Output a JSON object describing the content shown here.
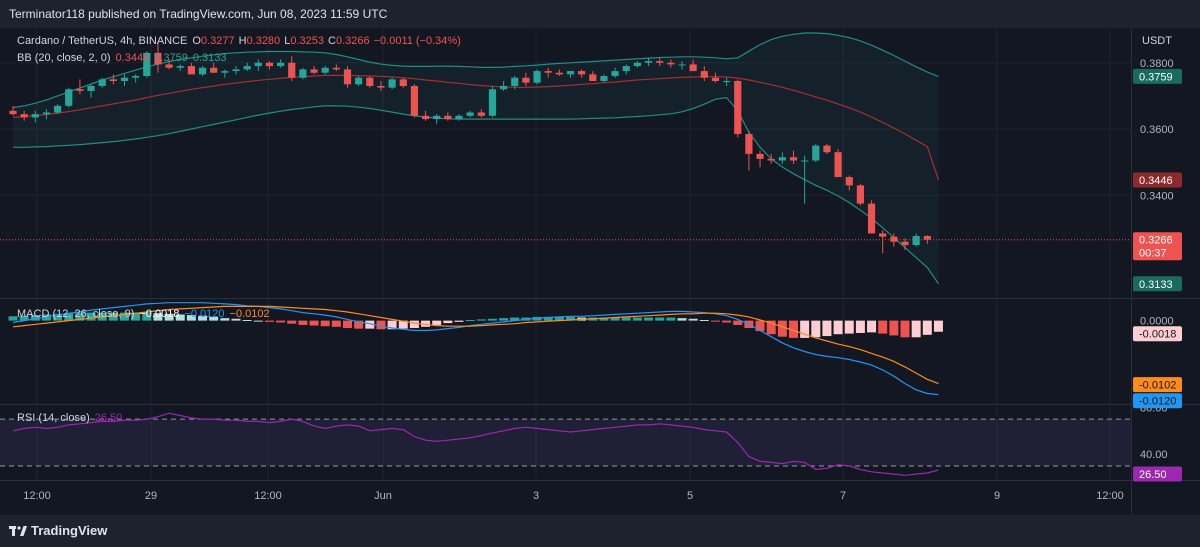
{
  "header": {
    "publisher_line": "Terminator118 published on TradingView.com, Jun 08, 2023 11:59 UTC"
  },
  "footer": {
    "brand": "TradingView"
  },
  "colors": {
    "bull": "#26a69a",
    "bear": "#ef5350",
    "bb_basis": "#a52f2f",
    "bb_band": "#1f8f7e",
    "macd_line": "#2196f3",
    "signal_line": "#ff8c1a",
    "rsi_line": "#9c27b0",
    "hist_pos_strong": "#26a69a",
    "hist_pos_weak": "#b2dfdb",
    "hist_neg_strong": "#ef5350",
    "hist_neg_weak": "#ffcdd2"
  },
  "chart_data": [
    {
      "type": "candlestick",
      "symbol_line": "Cardano / TetherUS, 4h, BINANCE",
      "ohlc": {
        "O": "0.3277",
        "H": "0.3280",
        "L": "0.3253",
        "C": "0.3266",
        "change": "−0.0011 (−0.34%)"
      },
      "bb_title": "BB (20, close, 2, 0)",
      "bb_values": [
        "0.3446",
        "0.3759",
        "0.3133"
      ],
      "currency": "USDT",
      "y_ticks": [
        "0.3800",
        "0.3600",
        "0.3400"
      ],
      "ylim": [
        0.309,
        0.3905
      ],
      "grid": true,
      "last_price": "0.3266",
      "countdown": "00:37",
      "badges": {
        "basis": "0.3446",
        "upper": "0.3759",
        "lower": "0.3133"
      },
      "x_tick_labels": [
        "12:00",
        "29",
        "12:00",
        "Jun",
        "3",
        "5",
        "7",
        "9",
        "12:00"
      ],
      "candles": [
        [
          0.3655,
          0.367,
          0.364,
          0.3645
        ],
        [
          0.3645,
          0.3655,
          0.3625,
          0.3635
        ],
        [
          0.3635,
          0.3655,
          0.362,
          0.3645
        ],
        [
          0.3645,
          0.366,
          0.363,
          0.365
        ],
        [
          0.365,
          0.3675,
          0.3645,
          0.367
        ],
        [
          0.367,
          0.3725,
          0.3665,
          0.372
        ],
        [
          0.372,
          0.375,
          0.3705,
          0.3715
        ],
        [
          0.3715,
          0.3735,
          0.3695,
          0.373
        ],
        [
          0.373,
          0.3755,
          0.3725,
          0.375
        ],
        [
          0.375,
          0.3765,
          0.3735,
          0.3745
        ],
        [
          0.3745,
          0.3765,
          0.373,
          0.3755
        ],
        [
          0.3755,
          0.3765,
          0.374,
          0.376
        ],
        [
          0.376,
          0.3835,
          0.3755,
          0.383
        ],
        [
          0.383,
          0.386,
          0.377,
          0.3795
        ],
        [
          0.3795,
          0.381,
          0.378,
          0.3785
        ],
        [
          0.3785,
          0.3795,
          0.3775,
          0.379
        ],
        [
          0.379,
          0.38,
          0.3765,
          0.3765
        ],
        [
          0.3765,
          0.379,
          0.376,
          0.3785
        ],
        [
          0.3785,
          0.38,
          0.377,
          0.377
        ],
        [
          0.377,
          0.378,
          0.3755,
          0.3775
        ],
        [
          0.3775,
          0.379,
          0.3765,
          0.378
        ],
        [
          0.378,
          0.38,
          0.3775,
          0.379
        ],
        [
          0.379,
          0.381,
          0.3775,
          0.38
        ],
        [
          0.38,
          0.3805,
          0.378,
          0.379
        ],
        [
          0.379,
          0.381,
          0.3785,
          0.38
        ],
        [
          0.38,
          0.382,
          0.3745,
          0.3755
        ],
        [
          0.3755,
          0.3785,
          0.375,
          0.378
        ],
        [
          0.378,
          0.379,
          0.3765,
          0.377
        ],
        [
          0.377,
          0.379,
          0.3765,
          0.3785
        ],
        [
          0.3785,
          0.3795,
          0.3775,
          0.378
        ],
        [
          0.378,
          0.379,
          0.3725,
          0.3735
        ],
        [
          0.3735,
          0.376,
          0.373,
          0.3755
        ],
        [
          0.3755,
          0.376,
          0.3725,
          0.373
        ],
        [
          0.373,
          0.3745,
          0.3715,
          0.3725
        ],
        [
          0.3725,
          0.3755,
          0.372,
          0.375
        ],
        [
          0.375,
          0.3755,
          0.3725,
          0.373
        ],
        [
          0.373,
          0.3735,
          0.3635,
          0.364
        ],
        [
          0.364,
          0.3655,
          0.3625,
          0.363
        ],
        [
          0.363,
          0.3645,
          0.3615,
          0.364
        ],
        [
          0.364,
          0.365,
          0.3625,
          0.363
        ],
        [
          0.363,
          0.3645,
          0.3625,
          0.364
        ],
        [
          0.364,
          0.3655,
          0.3635,
          0.365
        ],
        [
          0.365,
          0.366,
          0.3635,
          0.364
        ],
        [
          0.364,
          0.373,
          0.3635,
          0.372
        ],
        [
          0.372,
          0.3745,
          0.3715,
          0.373
        ],
        [
          0.373,
          0.376,
          0.372,
          0.3755
        ],
        [
          0.3755,
          0.377,
          0.373,
          0.374
        ],
        [
          0.374,
          0.378,
          0.3735,
          0.3775
        ],
        [
          0.3775,
          0.3785,
          0.3755,
          0.377
        ],
        [
          0.377,
          0.378,
          0.376,
          0.3765
        ],
        [
          0.3765,
          0.3775,
          0.3755,
          0.3775
        ],
        [
          0.3775,
          0.378,
          0.3755,
          0.3765
        ],
        [
          0.3765,
          0.3775,
          0.375,
          0.3745
        ],
        [
          0.3745,
          0.3765,
          0.374,
          0.376
        ],
        [
          0.376,
          0.3785,
          0.3755,
          0.3775
        ],
        [
          0.3775,
          0.3795,
          0.3765,
          0.379
        ],
        [
          0.379,
          0.3805,
          0.3785,
          0.38
        ],
        [
          0.38,
          0.3815,
          0.379,
          0.3805
        ],
        [
          0.3805,
          0.3815,
          0.379,
          0.38
        ],
        [
          0.38,
          0.381,
          0.3785,
          0.3795
        ],
        [
          0.3795,
          0.3805,
          0.378,
          0.3795
        ],
        [
          0.3795,
          0.381,
          0.3775,
          0.3775
        ],
        [
          0.3775,
          0.379,
          0.3745,
          0.3755
        ],
        [
          0.3755,
          0.377,
          0.374,
          0.3745
        ],
        [
          0.3745,
          0.3755,
          0.373,
          0.3745
        ],
        [
          0.3745,
          0.375,
          0.3575,
          0.3585
        ],
        [
          0.3585,
          0.3595,
          0.3475,
          0.3525
        ],
        [
          0.3525,
          0.3535,
          0.3485,
          0.351
        ],
        [
          0.351,
          0.3525,
          0.3495,
          0.3505
        ],
        [
          0.3505,
          0.353,
          0.3495,
          0.3515
        ],
        [
          0.3515,
          0.3535,
          0.3495,
          0.3505
        ],
        [
          0.3505,
          0.352,
          0.3375,
          0.3505
        ],
        [
          0.3505,
          0.3555,
          0.35,
          0.355
        ],
        [
          0.355,
          0.3555,
          0.3525,
          0.353
        ],
        [
          0.353,
          0.354,
          0.3455,
          0.3455
        ],
        [
          0.3455,
          0.346,
          0.3415,
          0.343
        ],
        [
          0.343,
          0.3435,
          0.337,
          0.3375
        ],
        [
          0.3375,
          0.3385,
          0.3285,
          0.3285
        ],
        [
          0.3285,
          0.3295,
          0.3225,
          0.3275
        ],
        [
          0.3275,
          0.3285,
          0.3245,
          0.326
        ],
        [
          0.326,
          0.327,
          0.3235,
          0.325
        ],
        [
          0.325,
          0.3285,
          0.3245,
          0.3277
        ],
        [
          0.3277,
          0.328,
          0.3253,
          0.3266
        ]
      ],
      "bb_basis": [
        0.3635,
        0.3638,
        0.3641,
        0.3644,
        0.3648,
        0.3653,
        0.3658,
        0.3664,
        0.367,
        0.3676,
        0.3682,
        0.3688,
        0.3695,
        0.3702,
        0.3708,
        0.3714,
        0.372,
        0.3725,
        0.373,
        0.3735,
        0.3739,
        0.3743,
        0.3747,
        0.375,
        0.3753,
        0.3756,
        0.3758,
        0.376,
        0.3762,
        0.3762,
        0.3762,
        0.3761,
        0.376,
        0.3759,
        0.3757,
        0.3755,
        0.3752,
        0.3748,
        0.3745,
        0.3741,
        0.3738,
        0.3734,
        0.3731,
        0.3729,
        0.3727,
        0.3726,
        0.3726,
        0.3727,
        0.3728,
        0.373,
        0.3732,
        0.3735,
        0.3737,
        0.374,
        0.3742,
        0.3745,
        0.3748,
        0.375,
        0.3752,
        0.3754,
        0.3756,
        0.3757,
        0.3758,
        0.3758,
        0.3757,
        0.3754,
        0.3748,
        0.3741,
        0.3734,
        0.3726,
        0.3717,
        0.3707,
        0.3697,
        0.3687,
        0.3676,
        0.3664,
        0.3651,
        0.3636,
        0.362,
        0.3603,
        0.3585,
        0.3566,
        0.3547,
        0.3446
      ],
      "bb_upper": [
        0.3665,
        0.367,
        0.3678,
        0.3688,
        0.37,
        0.3712,
        0.3724,
        0.3736,
        0.3748,
        0.3758,
        0.3768,
        0.3778,
        0.3788,
        0.3796,
        0.3804,
        0.381,
        0.3815,
        0.382,
        0.3824,
        0.3828,
        0.383,
        0.3832,
        0.3833,
        0.3834,
        0.3834,
        0.3834,
        0.3833,
        0.3832,
        0.383,
        0.3825,
        0.3818,
        0.381,
        0.3802,
        0.3796,
        0.3792,
        0.379,
        0.3789,
        0.3789,
        0.379,
        0.379,
        0.3789,
        0.3788,
        0.3786,
        0.3786,
        0.3787,
        0.3789,
        0.3791,
        0.3793,
        0.3796,
        0.3798,
        0.38,
        0.3802,
        0.3804,
        0.3806,
        0.3808,
        0.381,
        0.3812,
        0.3814,
        0.3816,
        0.3817,
        0.3818,
        0.3818,
        0.3817,
        0.3815,
        0.3812,
        0.3815,
        0.3835,
        0.3855,
        0.387,
        0.388,
        0.3886,
        0.389,
        0.389,
        0.3888,
        0.3883,
        0.3876,
        0.3866,
        0.3853,
        0.3838,
        0.3822,
        0.3805,
        0.3788,
        0.3772,
        0.3759
      ],
      "bb_lower": [
        0.3545,
        0.3545,
        0.3546,
        0.3547,
        0.3549,
        0.3551,
        0.3553,
        0.3556,
        0.3559,
        0.3562,
        0.3566,
        0.357,
        0.3575,
        0.358,
        0.3586,
        0.3593,
        0.36,
        0.3607,
        0.3614,
        0.3621,
        0.3628,
        0.3635,
        0.3642,
        0.3648,
        0.3654,
        0.3659,
        0.3663,
        0.3667,
        0.367,
        0.367,
        0.3669,
        0.3666,
        0.3662,
        0.3657,
        0.3651,
        0.3645,
        0.364,
        0.3636,
        0.3633,
        0.3631,
        0.363,
        0.363,
        0.363,
        0.363,
        0.363,
        0.363,
        0.363,
        0.363,
        0.363,
        0.363,
        0.363,
        0.3631,
        0.3632,
        0.3633,
        0.3634,
        0.3636,
        0.3638,
        0.364,
        0.3643,
        0.3646,
        0.3652,
        0.3662,
        0.3675,
        0.369,
        0.3695,
        0.3655,
        0.359,
        0.3545,
        0.351,
        0.3485,
        0.3465,
        0.3447,
        0.343,
        0.3415,
        0.3398,
        0.3378,
        0.3355,
        0.333,
        0.3302,
        0.3272,
        0.3242,
        0.3212,
        0.3182,
        0.3133
      ]
    },
    {
      "type": "bar",
      "title": "MACD (12, 26, close, 9)",
      "values_text": [
        "−0.0018",
        "−0.0120",
        "−0.0102"
      ],
      "y_ticks": [
        "0.0000"
      ],
      "badges": {
        "hist": "-0.0018",
        "signal": "-0.0102",
        "macd": "-0.0120"
      },
      "ylim": [
        -0.0135,
        0.0035
      ],
      "macd": [
        -0.0003,
        0.0,
        0.0003,
        0.0006,
        0.0009,
        0.0012,
        0.0014,
        0.0017,
        0.0019,
        0.0021,
        0.0023,
        0.0025,
        0.0027,
        0.0028,
        0.0029,
        0.0029,
        0.0029,
        0.0029,
        0.0028,
        0.0027,
        0.0026,
        0.0024,
        0.0023,
        0.0021,
        0.0019,
        0.0016,
        0.0013,
        0.0011,
        0.0009,
        0.0006,
        0.0002,
        -0.0002,
        -0.0005,
        -0.0009,
        -0.0012,
        -0.0014,
        -0.0016,
        -0.0016,
        -0.0015,
        -0.0013,
        -0.0011,
        -0.0008,
        -0.0006,
        -0.0004,
        -0.0002,
        0.0,
        0.0002,
        0.0004,
        0.0005,
        0.0006,
        0.0007,
        0.0007,
        0.0008,
        0.0009,
        0.001,
        0.0011,
        0.0012,
        0.0013,
        0.0014,
        0.0015,
        0.0015,
        0.0014,
        0.0013,
        0.0011,
        0.0008,
        0.0002,
        -0.0006,
        -0.0016,
        -0.0026,
        -0.0036,
        -0.0044,
        -0.005,
        -0.0055,
        -0.0058,
        -0.006,
        -0.0063,
        -0.0067,
        -0.0072,
        -0.008,
        -0.009,
        -0.0102,
        -0.0112,
        -0.0118,
        -0.012
      ],
      "signal": [
        -0.001,
        -0.0008,
        -0.0006,
        -0.0004,
        -0.0002,
        0.0,
        0.0002,
        0.0004,
        0.0006,
        0.0008,
        0.001,
        0.0012,
        0.0014,
        0.0016,
        0.0018,
        0.0019,
        0.002,
        0.0021,
        0.0022,
        0.0023,
        0.0023,
        0.0023,
        0.0023,
        0.0023,
        0.0022,
        0.0021,
        0.002,
        0.0019,
        0.0018,
        0.0016,
        0.0014,
        0.0011,
        0.0008,
        0.0005,
        0.0002,
        -0.0001,
        -0.0004,
        -0.0006,
        -0.0008,
        -0.0009,
        -0.0009,
        -0.0009,
        -0.0008,
        -0.0007,
        -0.0006,
        -0.0005,
        -0.0003,
        -0.0002,
        -0.0001,
        0.0,
        0.0001,
        0.0002,
        0.0003,
        0.0004,
        0.0005,
        0.0006,
        0.0007,
        0.0008,
        0.0009,
        0.001,
        0.0011,
        0.0011,
        0.0012,
        0.0012,
        0.0011,
        0.0009,
        0.0006,
        0.0001,
        -0.0004,
        -0.001,
        -0.0016,
        -0.0022,
        -0.0028,
        -0.0033,
        -0.0038,
        -0.0042,
        -0.0047,
        -0.0053,
        -0.0059,
        -0.0066,
        -0.0075,
        -0.0085,
        -0.0095,
        -0.0102
      ],
      "hist": [
        0.0007,
        0.0008,
        0.0009,
        0.001,
        0.0011,
        0.0012,
        0.0012,
        0.0013,
        0.0013,
        0.0013,
        0.0013,
        0.0013,
        0.0013,
        0.0012,
        0.0011,
        0.001,
        0.0009,
        0.0008,
        0.0006,
        0.0004,
        0.0003,
        0.0001,
        0.0,
        -0.0002,
        -0.0003,
        -0.0005,
        -0.0007,
        -0.0008,
        -0.0009,
        -0.001,
        -0.0012,
        -0.0013,
        -0.0013,
        -0.0014,
        -0.0014,
        -0.0013,
        -0.0012,
        -0.001,
        -0.0007,
        -0.0004,
        -0.0002,
        0.0001,
        0.0002,
        0.0003,
        0.0004,
        0.0005,
        0.0005,
        0.0006,
        0.0006,
        0.0006,
        0.0006,
        0.0005,
        0.0005,
        0.0005,
        0.0005,
        0.0005,
        0.0005,
        0.0005,
        0.0005,
        0.0005,
        0.0004,
        0.0003,
        0.0001,
        -0.0001,
        -0.0003,
        -0.0007,
        -0.0012,
        -0.0017,
        -0.0022,
        -0.0026,
        -0.0028,
        -0.0028,
        -0.0027,
        -0.0025,
        -0.0022,
        -0.0021,
        -0.002,
        -0.0019,
        -0.0021,
        -0.0024,
        -0.0027,
        -0.0027,
        -0.0023,
        -0.0018
      ]
    },
    {
      "type": "line",
      "title": "RSI (14, close)",
      "value_text": "26.50",
      "y_ticks": [
        "80.00",
        "40.00"
      ],
      "bands": [
        70,
        30
      ],
      "badge": "26.50",
      "ylim": [
        18,
        82
      ],
      "values": [
        60,
        62,
        63,
        62,
        63,
        65,
        66,
        67,
        68,
        68,
        69,
        69,
        70,
        72,
        75,
        73,
        71,
        70,
        70,
        69,
        69,
        68,
        68,
        67,
        68,
        70,
        68,
        64,
        62,
        64,
        65,
        64,
        60,
        61,
        62,
        61,
        55,
        52,
        51,
        52,
        53,
        54,
        56,
        58,
        60,
        62,
        63,
        62,
        61,
        60,
        59,
        60,
        61,
        62,
        63,
        64,
        65,
        65,
        66,
        65,
        64,
        63,
        61,
        60,
        59,
        50,
        38,
        34,
        33,
        32,
        34,
        33,
        27,
        28,
        31,
        30,
        27,
        25,
        24,
        23,
        22,
        23,
        24,
        26.5
      ]
    }
  ]
}
